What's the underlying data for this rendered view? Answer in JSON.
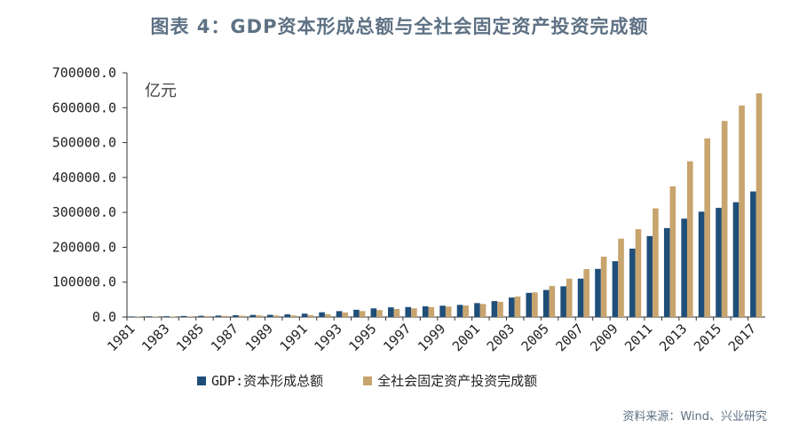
{
  "title": "图表 4：GDP资本形成总额与全社会固定资产投资完成额",
  "source": "资料来源：Wind、兴业研究",
  "unit_label": "亿元",
  "colors": {
    "gdp": "#1f4e79",
    "fai": "#c8a46e",
    "axis": "#333333",
    "title": "#5e7184"
  },
  "chart_data": {
    "type": "bar",
    "title": "图表 4：GDP资本形成总额与全社会固定资产投资完成额",
    "xlabel": "",
    "ylabel": "亿元",
    "ylim": [
      0,
      700000
    ],
    "yticks": [
      "0.0",
      "100000.0",
      "200000.0",
      "300000.0",
      "400000.0",
      "500000.0",
      "600000.0",
      "700000.0"
    ],
    "categories": [
      "1981",
      "1982",
      "1983",
      "1984",
      "1985",
      "1986",
      "1987",
      "1988",
      "1989",
      "1990",
      "1991",
      "1992",
      "1993",
      "1994",
      "1995",
      "1996",
      "1997",
      "1998",
      "1999",
      "2000",
      "2001",
      "2002",
      "2003",
      "2004",
      "2005",
      "2006",
      "2007",
      "2008",
      "2009",
      "2010",
      "2011",
      "2012",
      "2013",
      "2014",
      "2015",
      "2016",
      "2017"
    ],
    "xtick_labels": [
      "1981",
      "1983",
      "1985",
      "1987",
      "1989",
      "1991",
      "1993",
      "1995",
      "1997",
      "1999",
      "2001",
      "2003",
      "2005",
      "2007",
      "2009",
      "2011",
      "2013",
      "2015",
      "2017"
    ],
    "legend_position": "bottom",
    "series": [
      {
        "name": "GDP:资本形成总额",
        "values": [
          1600,
          1900,
          2200,
          2900,
          3500,
          4100,
          5100,
          6000,
          6300,
          7700,
          9700,
          13500,
          16800,
          20700,
          24800,
          27700,
          28600,
          30600,
          32400,
          34800,
          39800,
          45600,
          55800,
          69200,
          77500,
          88000,
          110000,
          138000,
          160000,
          196000,
          232000,
          255000,
          282000,
          302000,
          313000,
          329000,
          360000
        ]
      },
      {
        "name": "全社会固定资产投资完成额",
        "values": [
          961,
          1230,
          1430,
          1833,
          2543,
          3121,
          3792,
          4754,
          4410,
          4517,
          5595,
          8080,
          13072,
          17042,
          20019,
          22974,
          24941,
          28406,
          29855,
          32918,
          37213,
          43500,
          58616,
          70477,
          88774,
          109998,
          137324,
          172828,
          224599,
          251684,
          311485,
          374695,
          446294,
          512021,
          561999,
          606466,
          641238
        ]
      }
    ]
  }
}
